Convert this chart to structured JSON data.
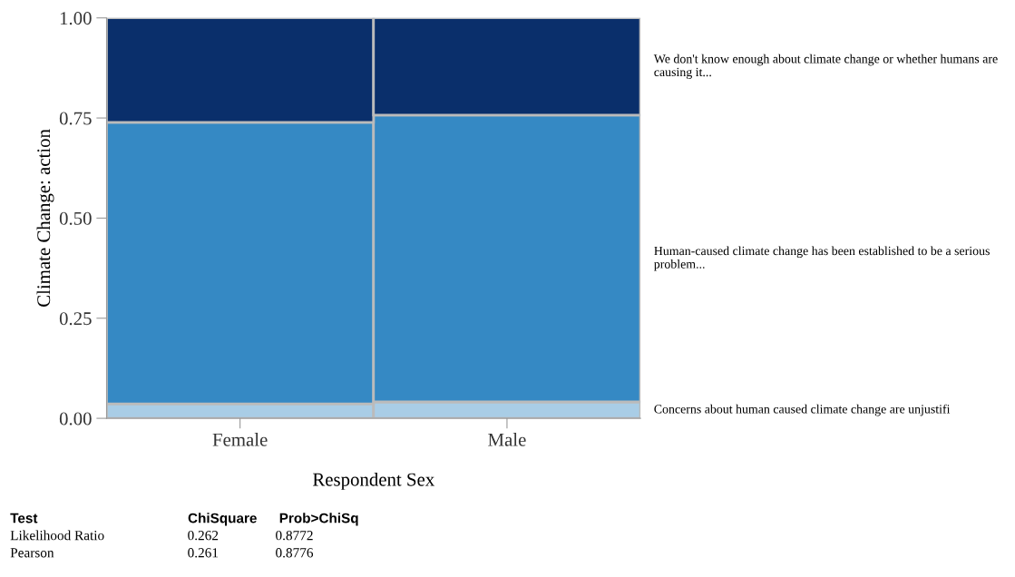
{
  "chart_data": {
    "type": "bar",
    "stacked": true,
    "xlabel": "Respondent Sex",
    "ylabel": "Climate Change: action",
    "categories": [
      "Female",
      "Male"
    ],
    "series": [
      {
        "name": "Concerns about human caused climate change are unjustifi",
        "color": "#a9cde6",
        "values": [
          0.036,
          0.041
        ]
      },
      {
        "name": "Human-caused climate change has been established to be a serious problem...",
        "color": "#3589c4",
        "values": [
          0.703,
          0.716
        ]
      },
      {
        "name": "We don't know enough about climate change or whether humans are causing it...",
        "color": "#0a2f6b",
        "values": [
          0.261,
          0.243
        ]
      }
    ],
    "ylim": [
      0,
      1
    ],
    "yticks": [
      {
        "value": 0,
        "label": "0.00"
      },
      {
        "value": 0.25,
        "label": "0.25"
      },
      {
        "value": 0.5,
        "label": "0.50"
      },
      {
        "value": 0.75,
        "label": "0.75"
      },
      {
        "value": 1,
        "label": "1.00"
      }
    ],
    "legend": "right",
    "annotations": [
      "Test",
      "ChiSquare",
      "Prob>ChiSq",
      "Likelihood Ratio",
      "0.262",
      "0.8772",
      "Pearson",
      "0.261",
      "0.8776"
    ]
  }
}
